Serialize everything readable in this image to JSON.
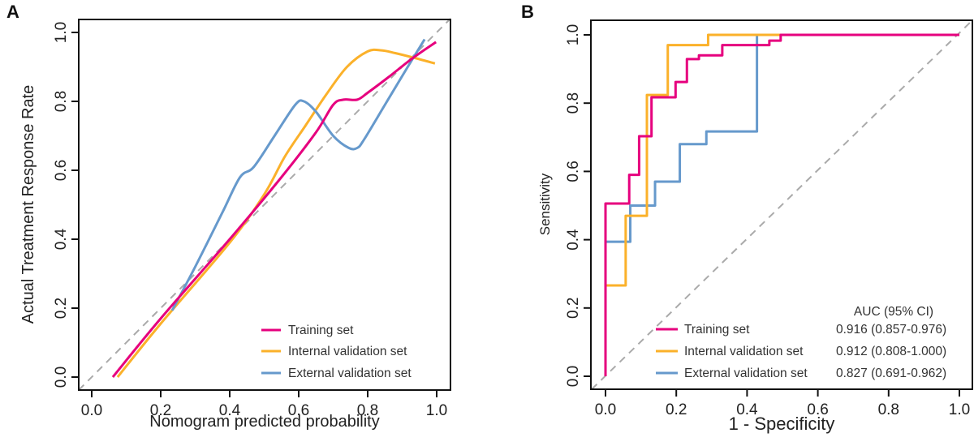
{
  "chart_data": [
    {
      "panel": "A",
      "type": "line",
      "title": "",
      "xlabel": "Nomogram predicted probability",
      "ylabel": "Actual Treatment Response Rate",
      "xlim": [
        -0.04,
        1.04
      ],
      "ylim": [
        -0.04,
        1.04
      ],
      "xticks": [
        "0.0",
        "0.2",
        "0.4",
        "0.6",
        "0.8",
        "1.0"
      ],
      "yticks": [
        "0.0",
        "0.2",
        "0.4",
        "0.6",
        "0.8",
        "1.0"
      ],
      "grid": false,
      "reference_line": "diagonal-dashed",
      "legend_position": "bottom-right",
      "series": [
        {
          "name": "Training set",
          "color": "#e6007e",
          "x": [
            0.061,
            0.2,
            0.4,
            0.55,
            0.65,
            0.7,
            0.73,
            0.77,
            0.8,
            0.86,
            0.93,
            0.998
          ],
          "y": [
            0.0,
            0.17,
            0.4,
            0.58,
            0.71,
            0.79,
            0.805,
            0.805,
            0.825,
            0.87,
            0.925,
            0.972
          ]
        },
        {
          "name": "Internal validation set",
          "color": "#fbb12a",
          "x": [
            0.075,
            0.2,
            0.4,
            0.5,
            0.56,
            0.62,
            0.68,
            0.74,
            0.8,
            0.84,
            0.88,
            0.94,
            0.995
          ],
          "y": [
            0.0,
            0.155,
            0.39,
            0.53,
            0.64,
            0.73,
            0.82,
            0.9,
            0.945,
            0.948,
            0.94,
            0.925,
            0.91
          ]
        },
        {
          "name": "External validation set",
          "color": "#6699cc",
          "x": [
            0.233,
            0.3,
            0.38,
            0.43,
            0.47,
            0.53,
            0.59,
            0.615,
            0.65,
            0.7,
            0.745,
            0.77,
            0.79,
            0.85,
            0.91,
            0.965
          ],
          "y": [
            0.193,
            0.32,
            0.48,
            0.58,
            0.61,
            0.7,
            0.79,
            0.8,
            0.77,
            0.7,
            0.665,
            0.665,
            0.69,
            0.79,
            0.89,
            0.98
          ]
        }
      ]
    },
    {
      "panel": "B",
      "type": "line",
      "title": "",
      "xlabel": "1 - Specificity",
      "ylabel": "Sensitivity",
      "xlim": [
        -0.04,
        1.04
      ],
      "ylim": [
        -0.04,
        1.04
      ],
      "xticks": [
        "0.0",
        "0.2",
        "0.4",
        "0.6",
        "0.8",
        "1.0"
      ],
      "yticks": [
        "0.0",
        "0.2",
        "0.4",
        "0.6",
        "0.8",
        "1.0"
      ],
      "grid": false,
      "reference_line": "diagonal-dashed",
      "legend_position": "bottom-right",
      "legend_header": "AUC (95% CI)",
      "series": [
        {
          "name": "Training set",
          "color": "#e6007e",
          "auc": "0.916 (0.857-0.976)",
          "x": [
            0,
            0,
            0.067,
            0.067,
            0.095,
            0.095,
            0.13,
            0.13,
            0.198,
            0.198,
            0.23,
            0.23,
            0.264,
            0.264,
            0.33,
            0.33,
            0.463,
            0.463,
            0.495,
            0.495,
            1.0
          ],
          "y": [
            0,
            0.506,
            0.506,
            0.59,
            0.59,
            0.703,
            0.703,
            0.817,
            0.817,
            0.862,
            0.862,
            0.929,
            0.929,
            0.94,
            0.94,
            0.97,
            0.97,
            0.983,
            0.983,
            1.0,
            1.0
          ]
        },
        {
          "name": "Internal validation set",
          "color": "#fbb12a",
          "auc": "0.912 (0.808-1.000)",
          "x": [
            0,
            0,
            0.057,
            0.057,
            0.117,
            0.117,
            0.176,
            0.176,
            0.29,
            0.29,
            1.0
          ],
          "y": [
            0,
            0.266,
            0.266,
            0.47,
            0.47,
            0.824,
            0.824,
            0.97,
            0.97,
            1.0,
            1.0
          ]
        },
        {
          "name": "External validation set",
          "color": "#6699cc",
          "auc": "0.827 (0.691-0.962)",
          "x": [
            0,
            0,
            0.07,
            0.07,
            0.14,
            0.14,
            0.21,
            0.21,
            0.285,
            0.285,
            0.428,
            0.428,
            1.0
          ],
          "y": [
            0,
            0.394,
            0.394,
            0.5,
            0.5,
            0.57,
            0.57,
            0.68,
            0.68,
            0.717,
            0.717,
            1.0,
            1.0
          ]
        }
      ]
    }
  ]
}
